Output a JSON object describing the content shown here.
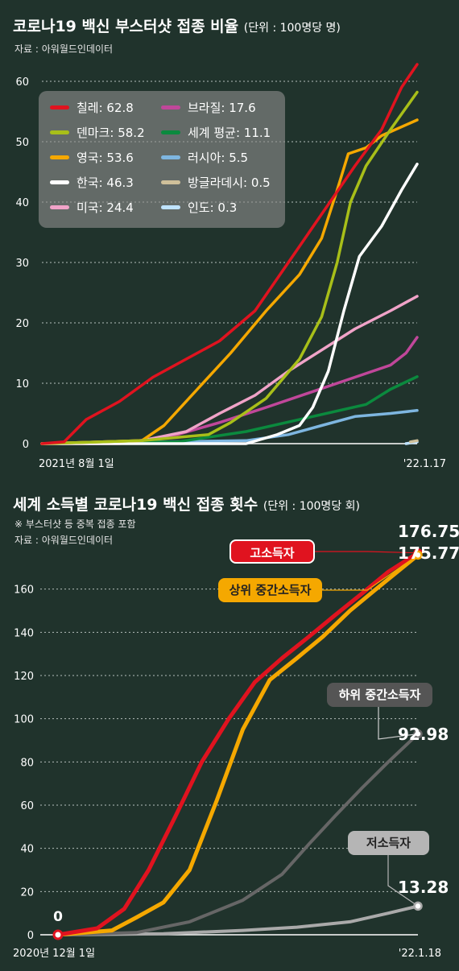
{
  "chart1": {
    "title": "코로나19 백신 부스터샷 접종 비율",
    "unit": "(단위 : 100명당 명)",
    "source": "자료 : 아워월드인데이터",
    "chart_data": {
      "type": "line",
      "ylim": [
        0,
        60
      ],
      "yticks": [
        "0",
        "10",
        "20",
        "30",
        "40",
        "50",
        "60"
      ],
      "x_start_label": "2021년 8월 1일",
      "x_end_label": "'22.1.17",
      "x_range": [
        "2021-08-01",
        "2022-01-17"
      ],
      "grid": true,
      "legend_position": "top-left",
      "series": [
        {
          "name": "칠레",
          "legend": "칠레: 62.8",
          "color": "#e0131f",
          "points": [
            [
              "2021-08-01",
              0
            ],
            [
              "2021-08-11",
              0.3
            ],
            [
              "2021-08-21",
              4
            ],
            [
              "2021-09-05",
              7
            ],
            [
              "2021-09-20",
              11
            ],
            [
              "2021-10-05",
              14
            ],
            [
              "2021-10-20",
              17
            ],
            [
              "2021-11-05",
              22
            ],
            [
              "2021-11-20",
              30
            ],
            [
              "2021-12-05",
              38
            ],
            [
              "2021-12-20",
              46
            ],
            [
              "2022-01-01",
              52
            ],
            [
              "2022-01-10",
              59
            ],
            [
              "2022-01-17",
              62.8
            ]
          ]
        },
        {
          "name": "덴마크",
          "legend": "덴마크: 58.2",
          "color": "#a8bf19",
          "points": [
            [
              "2021-08-01",
              0
            ],
            [
              "2021-09-15",
              0.5
            ],
            [
              "2021-10-15",
              1.5
            ],
            [
              "2021-10-25",
              3.5
            ],
            [
              "2021-11-10",
              7.5
            ],
            [
              "2021-11-25",
              14
            ],
            [
              "2021-12-05",
              21
            ],
            [
              "2021-12-12",
              30
            ],
            [
              "2021-12-18",
              40
            ],
            [
              "2021-12-25",
              46
            ],
            [
              "2022-01-05",
              52
            ],
            [
              "2022-01-17",
              58.2
            ]
          ]
        },
        {
          "name": "영국",
          "legend": "영국: 53.6",
          "color": "#f5a800",
          "points": [
            [
              "2021-08-01",
              0
            ],
            [
              "2021-09-15",
              0.5
            ],
            [
              "2021-09-25",
              3
            ],
            [
              "2021-10-10",
              9
            ],
            [
              "2021-10-25",
              15
            ],
            [
              "2021-11-10",
              22
            ],
            [
              "2021-11-25",
              28
            ],
            [
              "2021-12-05",
              34
            ],
            [
              "2021-12-12",
              42
            ],
            [
              "2021-12-17",
              48
            ],
            [
              "2021-12-25",
              49
            ],
            [
              "2022-01-01",
              51
            ],
            [
              "2022-01-17",
              53.6
            ]
          ]
        },
        {
          "name": "한국",
          "legend": "한국: 46.3",
          "color": "#ffffff",
          "points": [
            [
              "2021-08-01",
              0
            ],
            [
              "2021-11-01",
              0
            ],
            [
              "2021-11-15",
              1.5
            ],
            [
              "2021-11-25",
              3
            ],
            [
              "2021-12-01",
              6
            ],
            [
              "2021-12-08",
              12
            ],
            [
              "2021-12-15",
              22
            ],
            [
              "2021-12-22",
              31
            ],
            [
              "2022-01-01",
              36
            ],
            [
              "2022-01-10",
              42
            ],
            [
              "2022-01-17",
              46.3
            ]
          ]
        },
        {
          "name": "미국",
          "legend": "미국: 24.4",
          "color": "#f0a3c8",
          "points": [
            [
              "2021-08-01",
              0
            ],
            [
              "2021-09-15",
              0.5
            ],
            [
              "2021-10-05",
              2
            ],
            [
              "2021-10-20",
              5
            ],
            [
              "2021-11-05",
              8
            ],
            [
              "2021-11-20",
              12
            ],
            [
              "2021-12-05",
              15.5
            ],
            [
              "2021-12-20",
              19
            ],
            [
              "2022-01-05",
              22
            ],
            [
              "2022-01-17",
              24.4
            ]
          ]
        },
        {
          "name": "브라질",
          "legend": "브라질: 17.6",
          "color": "#c0479a",
          "points": [
            [
              "2021-08-01",
              0
            ],
            [
              "2021-09-05",
              0
            ],
            [
              "2021-10-01",
              1.5
            ],
            [
              "2021-10-20",
              3.5
            ],
            [
              "2021-11-10",
              6
            ],
            [
              "2021-11-30",
              8.5
            ],
            [
              "2021-12-20",
              11
            ],
            [
              "2022-01-05",
              13
            ],
            [
              "2022-01-12",
              15
            ],
            [
              "2022-01-17",
              17.6
            ]
          ]
        },
        {
          "name": "세계 평균",
          "legend": "세계 평균: 11.1",
          "color": "#0b8a3e",
          "points": [
            [
              "2021-08-01",
              0
            ],
            [
              "2021-10-01",
              0.3
            ],
            [
              "2021-11-01",
              2
            ],
            [
              "2021-12-01",
              4.5
            ],
            [
              "2021-12-25",
              6.5
            ],
            [
              "2022-01-05",
              9
            ],
            [
              "2022-01-17",
              11.1
            ]
          ]
        },
        {
          "name": "러시아",
          "legend": "러시아: 5.5",
          "color": "#7eb6e0",
          "points": [
            [
              "2021-08-01",
              0
            ],
            [
              "2021-11-01",
              0.5
            ],
            [
              "2021-11-20",
              1.5
            ],
            [
              "2021-12-05",
              3
            ],
            [
              "2021-12-20",
              4.5
            ],
            [
              "2022-01-05",
              5
            ],
            [
              "2022-01-17",
              5.5
            ]
          ]
        },
        {
          "name": "방글라데시",
          "legend": "방글라데시: 0.5",
          "color": "#cfc09a",
          "points": [
            [
              "2022-01-14",
              0.3
            ],
            [
              "2022-01-17",
              0.5
            ]
          ]
        },
        {
          "name": "인도",
          "legend": "인도: 0.3",
          "color": "#bfe3ff",
          "points": [
            [
              "2022-01-12",
              0
            ],
            [
              "2022-01-17",
              0.3
            ]
          ]
        }
      ]
    }
  },
  "chart2": {
    "title": "세계 소득별 코로나19 백신 접종 횟수",
    "unit": "(단위 : 100명당 회)",
    "note": "※ 부스터샷 등 중복 접종 포함",
    "source": "자료 : 아워월드인데이터",
    "chart_data": {
      "type": "line",
      "ylim": [
        0,
        180
      ],
      "yticks": [
        "0",
        "20",
        "40",
        "60",
        "80",
        "100",
        "120",
        "140",
        "160"
      ],
      "x_start_label": "2020년 12월 1일",
      "x_end_label": "'22.1.18",
      "x_range": [
        "2020-12-01",
        "2022-01-18"
      ],
      "grid": true,
      "start_label": "0",
      "series": [
        {
          "name": "고소득자",
          "end_value": "176.75",
          "color": "#e0131f",
          "label_color": "#e0131f",
          "points": [
            [
              "2020-12-01",
              0
            ],
            [
              "2021-01-15",
              3
            ],
            [
              "2021-02-15",
              12
            ],
            [
              "2021-03-15",
              30
            ],
            [
              "2021-04-15",
              55
            ],
            [
              "2021-05-15",
              80
            ],
            [
              "2021-06-15",
              100
            ],
            [
              "2021-07-15",
              117
            ],
            [
              "2021-08-15",
              128
            ],
            [
              "2021-09-15",
              138
            ],
            [
              "2021-10-15",
              148
            ],
            [
              "2021-11-15",
              158
            ],
            [
              "2021-12-15",
              168
            ],
            [
              "2022-01-18",
              176.75
            ]
          ]
        },
        {
          "name": "상위 중간소득자",
          "end_value": "175.77",
          "color": "#f5a800",
          "label_color": "#f5a800",
          "points": [
            [
              "2020-12-01",
              0
            ],
            [
              "2021-02-01",
              2
            ],
            [
              "2021-03-01",
              8
            ],
            [
              "2021-04-01",
              15
            ],
            [
              "2021-05-01",
              30
            ],
            [
              "2021-06-01",
              62
            ],
            [
              "2021-07-01",
              95
            ],
            [
              "2021-08-01",
              118
            ],
            [
              "2021-09-01",
              128
            ],
            [
              "2021-10-01",
              138
            ],
            [
              "2021-11-01",
              150
            ],
            [
              "2021-12-01",
              160
            ],
            [
              "2022-01-18",
              175.77
            ]
          ]
        },
        {
          "name": "하위 중간소득자",
          "end_value": "92.98",
          "color": "#666666",
          "label_color": "#555555",
          "points": [
            [
              "2020-12-01",
              0
            ],
            [
              "2021-03-01",
              1
            ],
            [
              "2021-05-01",
              6
            ],
            [
              "2021-07-01",
              16
            ],
            [
              "2021-08-15",
              28
            ],
            [
              "2021-09-15",
              42
            ],
            [
              "2021-10-15",
              55
            ],
            [
              "2021-11-15",
              68
            ],
            [
              "2021-12-15",
              80
            ],
            [
              "2022-01-18",
              92.98
            ]
          ]
        },
        {
          "name": "저소득자",
          "end_value": "13.28",
          "color": "#aaaaaa",
          "label_color": "#b5b5b5",
          "points": [
            [
              "2020-12-01",
              0
            ],
            [
              "2021-04-01",
              0.5
            ],
            [
              "2021-07-01",
              2
            ],
            [
              "2021-09-01",
              3.5
            ],
            [
              "2021-11-01",
              6
            ],
            [
              "2021-12-15",
              10
            ],
            [
              "2022-01-18",
              13.28
            ]
          ]
        }
      ]
    }
  }
}
